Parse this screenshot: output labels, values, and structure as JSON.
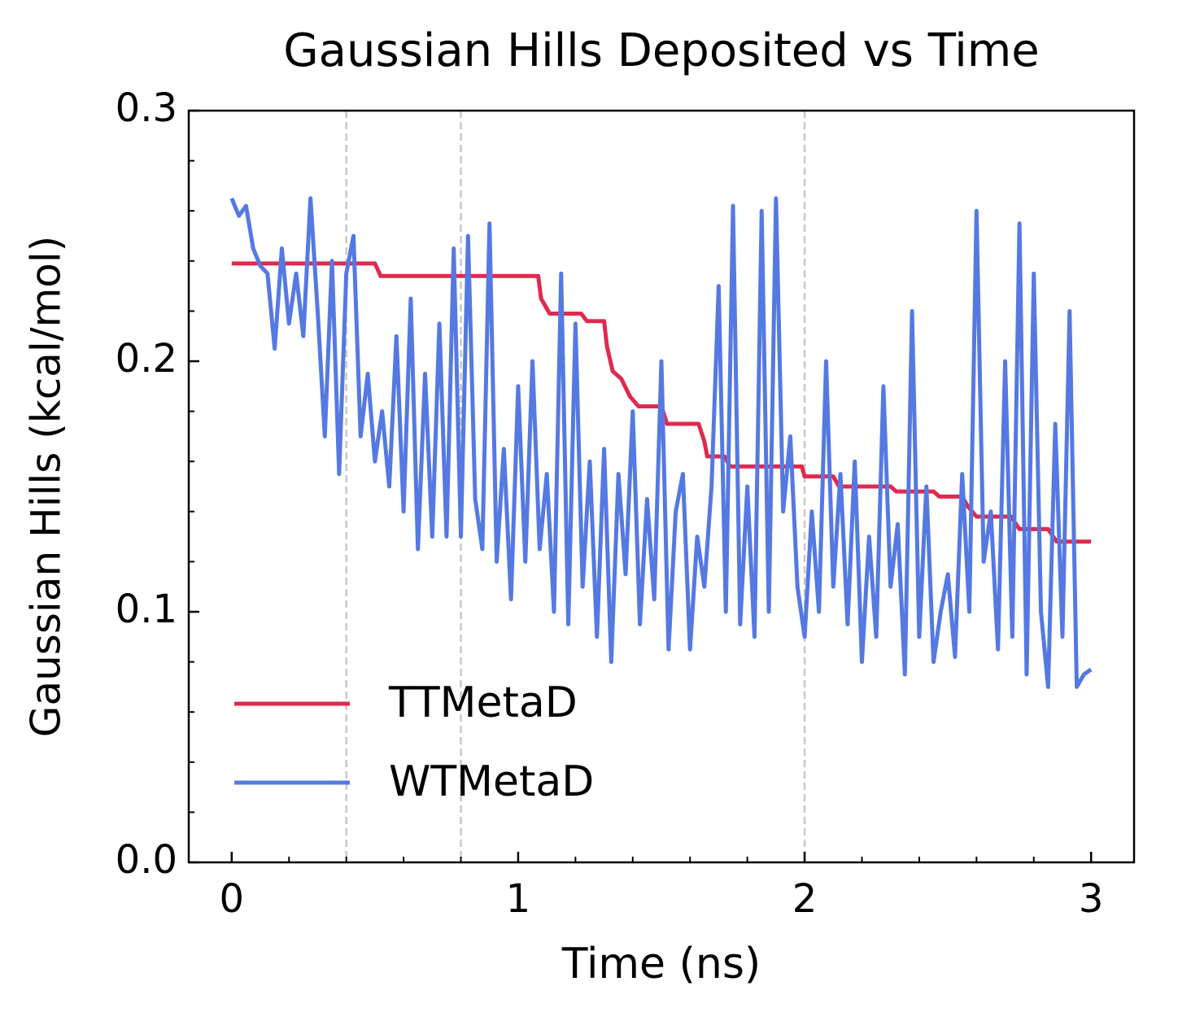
{
  "chart_data": {
    "type": "line",
    "title": "Gaussian Hills Deposited vs Time",
    "xlabel": "Time (ns)",
    "ylabel": "Gaussian Hills (kcal/mol)",
    "xlim": [
      -0.15,
      3.15
    ],
    "ylim": [
      0,
      0.3
    ],
    "xticks": [
      0,
      1,
      2,
      3
    ],
    "yticks": [
      {
        "value": 0,
        "label": "0.0"
      },
      0.1,
      0.2,
      0.3
    ],
    "xminorticks": [
      0.2,
      0.4,
      0.6,
      0.8,
      1.2,
      1.4,
      1.6,
      1.8,
      2.2,
      2.4,
      2.6,
      2.8
    ],
    "yminorticks": [
      0.02,
      0.04,
      0.06,
      0.08,
      0.12,
      0.14,
      0.16,
      0.18,
      0.22,
      0.24,
      0.26,
      0.28
    ],
    "vlines": [
      0.4,
      0.8,
      2.0
    ],
    "legend": "lower left",
    "series": [
      {
        "name": "TTMetaD",
        "color": "#e0294f",
        "x": [
          0,
          0.5,
          0.52,
          1.07,
          1.08,
          1.11,
          1.22,
          1.24,
          1.3,
          1.31,
          1.33,
          1.36,
          1.39,
          1.42,
          1.5,
          1.52,
          1.63,
          1.65,
          1.66,
          1.72,
          1.74,
          1.99,
          2.0,
          2.1,
          2.12,
          2.3,
          2.32,
          2.45,
          2.47,
          2.55,
          2.57,
          2.6,
          2.72,
          2.75,
          2.85,
          2.88,
          3.0
        ],
        "values": [
          0.239,
          0.239,
          0.234,
          0.234,
          0.225,
          0.219,
          0.219,
          0.216,
          0.216,
          0.206,
          0.196,
          0.193,
          0.186,
          0.182,
          0.182,
          0.175,
          0.175,
          0.168,
          0.162,
          0.162,
          0.158,
          0.158,
          0.154,
          0.154,
          0.15,
          0.15,
          0.148,
          0.148,
          0.146,
          0.146,
          0.142,
          0.138,
          0.138,
          0.133,
          0.133,
          0.128,
          0.128
        ]
      },
      {
        "name": "WTMetaD",
        "color": "#5579e2",
        "x": [
          0,
          0.025,
          0.05,
          0.075,
          0.1,
          0.125,
          0.15,
          0.175,
          0.2,
          0.225,
          0.25,
          0.275,
          0.3,
          0.325,
          0.35,
          0.375,
          0.4,
          0.425,
          0.45,
          0.475,
          0.5,
          0.525,
          0.55,
          0.575,
          0.6,
          0.625,
          0.65,
          0.675,
          0.7,
          0.725,
          0.75,
          0.775,
          0.8,
          0.825,
          0.85,
          0.875,
          0.9,
          0.925,
          0.95,
          0.975,
          1.0,
          1.025,
          1.05,
          1.075,
          1.1,
          1.125,
          1.15,
          1.175,
          1.2,
          1.225,
          1.25,
          1.275,
          1.3,
          1.325,
          1.35,
          1.375,
          1.4,
          1.425,
          1.45,
          1.475,
          1.5,
          1.525,
          1.55,
          1.575,
          1.6,
          1.625,
          1.65,
          1.675,
          1.7,
          1.725,
          1.75,
          1.775,
          1.8,
          1.825,
          1.85,
          1.875,
          1.9,
          1.925,
          1.95,
          1.975,
          2.0,
          2.025,
          2.05,
          2.075,
          2.1,
          2.125,
          2.15,
          2.175,
          2.2,
          2.225,
          2.25,
          2.275,
          2.3,
          2.325,
          2.35,
          2.375,
          2.4,
          2.425,
          2.45,
          2.475,
          2.5,
          2.525,
          2.55,
          2.575,
          2.6,
          2.625,
          2.65,
          2.675,
          2.7,
          2.725,
          2.75,
          2.775,
          2.8,
          2.825,
          2.85,
          2.875,
          2.9,
          2.925,
          2.95,
          2.975,
          3.0
        ],
        "values": [
          0.265,
          0.258,
          0.262,
          0.245,
          0.238,
          0.235,
          0.205,
          0.245,
          0.215,
          0.235,
          0.21,
          0.265,
          0.22,
          0.17,
          0.24,
          0.155,
          0.235,
          0.25,
          0.17,
          0.195,
          0.16,
          0.18,
          0.15,
          0.21,
          0.14,
          0.225,
          0.125,
          0.195,
          0.13,
          0.215,
          0.13,
          0.245,
          0.13,
          0.25,
          0.145,
          0.125,
          0.255,
          0.12,
          0.165,
          0.105,
          0.19,
          0.12,
          0.2,
          0.125,
          0.155,
          0.1,
          0.235,
          0.095,
          0.215,
          0.11,
          0.16,
          0.09,
          0.165,
          0.08,
          0.155,
          0.115,
          0.18,
          0.095,
          0.145,
          0.105,
          0.2,
          0.085,
          0.14,
          0.155,
          0.085,
          0.13,
          0.11,
          0.15,
          0.23,
          0.1,
          0.262,
          0.095,
          0.15,
          0.09,
          0.26,
          0.1,
          0.265,
          0.14,
          0.17,
          0.11,
          0.09,
          0.14,
          0.1,
          0.2,
          0.11,
          0.155,
          0.095,
          0.16,
          0.08,
          0.13,
          0.09,
          0.19,
          0.11,
          0.135,
          0.075,
          0.22,
          0.09,
          0.15,
          0.08,
          0.1,
          0.115,
          0.082,
          0.155,
          0.1,
          0.26,
          0.12,
          0.14,
          0.085,
          0.2,
          0.09,
          0.255,
          0.075,
          0.235,
          0.1,
          0.07,
          0.175,
          0.09,
          0.22,
          0.07,
          0.075,
          0.077
        ]
      }
    ]
  }
}
